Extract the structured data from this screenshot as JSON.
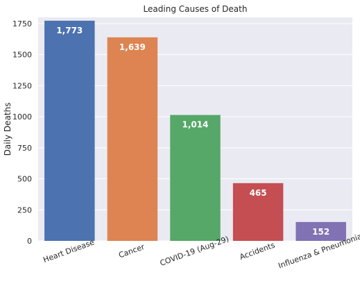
{
  "chart_data": {
    "type": "bar",
    "title": "Leading Causes of Death",
    "xlabel": "",
    "ylabel": "Daily Deaths",
    "categories": [
      "Heart Disease",
      "Cancer",
      "COVID-19 (Aug-29)",
      "Accidents",
      "Influenza & Pneumonia"
    ],
    "values": [
      1773,
      1639,
      1014,
      465,
      152
    ],
    "value_labels": [
      "1,773",
      "1,639",
      "1,014",
      "465",
      "152"
    ],
    "colors": [
      "#4c72b0",
      "#dd8452",
      "#55a868",
      "#c44e52",
      "#8172b3"
    ],
    "ylim": [
      0,
      1800
    ],
    "yticks": [
      0,
      250,
      500,
      750,
      1000,
      1250,
      1500,
      1750
    ],
    "grid": true,
    "background": "#eaeaf2"
  }
}
